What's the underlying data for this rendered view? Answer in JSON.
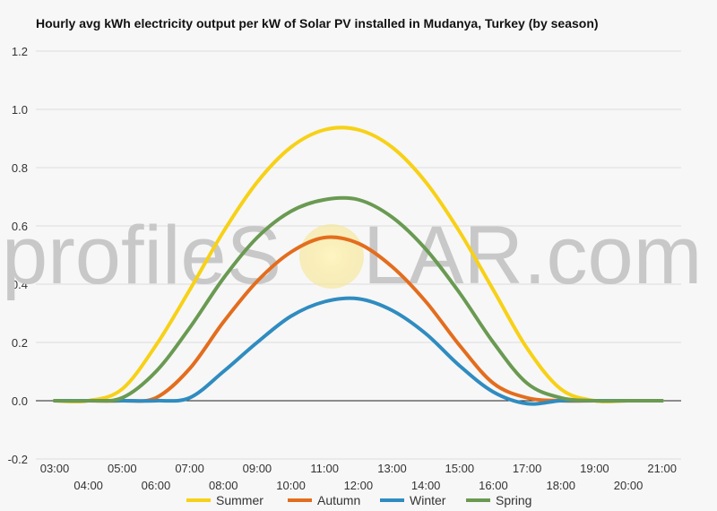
{
  "title": "Hourly avg kWh electricity output per kW of Solar PV installed in Mudanya, Turkey (by season)",
  "watermark": {
    "left": "profileS",
    "right": "LAR.com"
  },
  "chart_data": {
    "type": "line",
    "title": "Hourly avg kWh electricity output per kW of Solar PV installed in Mudanya, Turkey (by season)",
    "xlabel": "",
    "ylabel": "",
    "ylim": [
      -0.2,
      1.2
    ],
    "yticks": [
      -0.2,
      0.0,
      0.2,
      0.4,
      0.6,
      0.8,
      1.0,
      1.2
    ],
    "ytick_labels": [
      "-0.2",
      "0.0",
      "0.2",
      "0.4",
      "0.6",
      "0.8",
      "1.0",
      "1.2"
    ],
    "categories": [
      "03:00",
      "04:00",
      "05:00",
      "06:00",
      "07:00",
      "08:00",
      "09:00",
      "10:00",
      "11:00",
      "12:00",
      "13:00",
      "14:00",
      "15:00",
      "16:00",
      "17:00",
      "18:00",
      "19:00",
      "20:00",
      "21:00"
    ],
    "grid": true,
    "legend_position": "bottom",
    "series": [
      {
        "name": "Summer",
        "color": "#f7d117",
        "values": [
          0,
          0,
          0.04,
          0.19,
          0.38,
          0.58,
          0.75,
          0.87,
          0.93,
          0.93,
          0.87,
          0.75,
          0.58,
          0.38,
          0.18,
          0.04,
          0,
          0,
          0
        ]
      },
      {
        "name": "Autumn",
        "color": "#e36d1e",
        "values": [
          0,
          0,
          0,
          0.01,
          0.11,
          0.27,
          0.41,
          0.51,
          0.56,
          0.54,
          0.46,
          0.34,
          0.19,
          0.06,
          0.01,
          0,
          0,
          0,
          0
        ]
      },
      {
        "name": "Winter",
        "color": "#2f8cc0",
        "values": [
          0,
          0,
          0,
          0,
          0.01,
          0.1,
          0.2,
          0.29,
          0.34,
          0.35,
          0.31,
          0.23,
          0.12,
          0.03,
          -0.01,
          0,
          0,
          0,
          0
        ]
      },
      {
        "name": "Spring",
        "color": "#6a9a52",
        "values": [
          0,
          0,
          0.01,
          0.1,
          0.25,
          0.42,
          0.56,
          0.65,
          0.69,
          0.69,
          0.63,
          0.52,
          0.37,
          0.2,
          0.06,
          0.01,
          0,
          0,
          0
        ]
      }
    ]
  }
}
